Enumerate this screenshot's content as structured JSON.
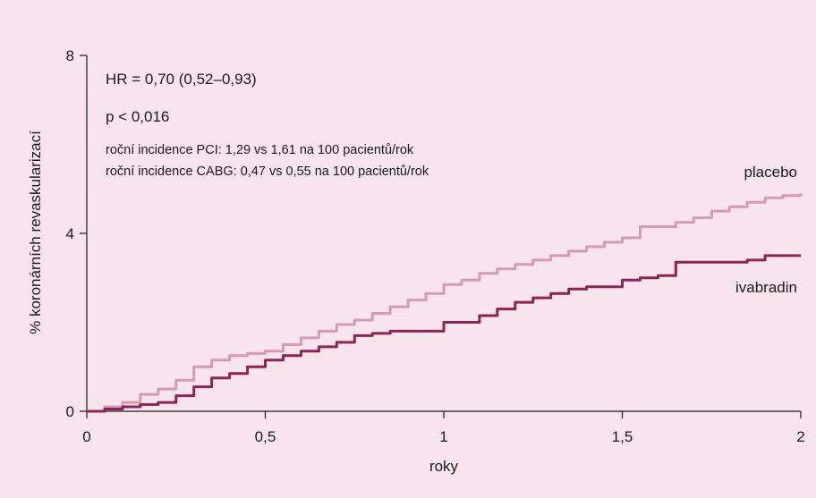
{
  "chart_data": {
    "type": "line",
    "xlabel": "roky",
    "ylabel": "% koronárních revaskularizací",
    "xlim": [
      0,
      2
    ],
    "ylim": [
      0,
      8
    ],
    "x_ticks": [
      0,
      0.5,
      1,
      1.5,
      2
    ],
    "x_tick_labels": [
      "0",
      "0,5",
      "1",
      "1,5",
      "2"
    ],
    "y_ticks": [
      0,
      4,
      8
    ],
    "y_tick_labels": [
      "0",
      "4",
      "8"
    ],
    "grid": false,
    "annotations": [
      "HR = 0,70 (0,52–0,93)",
      "p < 0,016",
      "roční incidence PCI: 1,29 vs 1,61 na 100 pacientů/rok",
      "roční incidence CABG: 0,47 vs 0,55 na 100 pacientů/rok"
    ],
    "series": [
      {
        "name": "placebo",
        "color": "#d69bb0",
        "x": [
          0,
          0.05,
          0.1,
          0.15,
          0.2,
          0.25,
          0.3,
          0.35,
          0.4,
          0.45,
          0.5,
          0.55,
          0.6,
          0.65,
          0.7,
          0.75,
          0.8,
          0.85,
          0.9,
          0.95,
          1.0,
          1.05,
          1.1,
          1.15,
          1.2,
          1.25,
          1.3,
          1.35,
          1.4,
          1.45,
          1.5,
          1.55,
          1.6,
          1.65,
          1.7,
          1.75,
          1.8,
          1.85,
          1.9,
          1.95,
          2.0
        ],
        "values": [
          0,
          0.1,
          0.2,
          0.38,
          0.5,
          0.7,
          1.0,
          1.15,
          1.25,
          1.3,
          1.35,
          1.5,
          1.65,
          1.8,
          1.95,
          2.05,
          2.2,
          2.35,
          2.5,
          2.65,
          2.85,
          2.95,
          3.1,
          3.2,
          3.3,
          3.4,
          3.5,
          3.6,
          3.7,
          3.8,
          3.9,
          4.15,
          4.15,
          4.25,
          4.35,
          4.5,
          4.6,
          4.7,
          4.8,
          4.85,
          4.9
        ]
      },
      {
        "name": "ivabradin",
        "color": "#8c2456",
        "x": [
          0,
          0.05,
          0.1,
          0.15,
          0.2,
          0.25,
          0.3,
          0.35,
          0.4,
          0.45,
          0.5,
          0.55,
          0.6,
          0.65,
          0.7,
          0.75,
          0.8,
          0.85,
          0.9,
          0.95,
          1.0,
          1.05,
          1.1,
          1.15,
          1.2,
          1.25,
          1.3,
          1.35,
          1.4,
          1.45,
          1.5,
          1.55,
          1.6,
          1.65,
          1.7,
          1.75,
          1.8,
          1.85,
          1.9,
          1.95,
          2.0
        ],
        "values": [
          0,
          0.05,
          0.1,
          0.15,
          0.2,
          0.35,
          0.55,
          0.75,
          0.85,
          1.0,
          1.15,
          1.25,
          1.35,
          1.45,
          1.55,
          1.7,
          1.75,
          1.8,
          1.8,
          1.8,
          2.0,
          2.0,
          2.15,
          2.3,
          2.45,
          2.55,
          2.65,
          2.75,
          2.8,
          2.8,
          2.95,
          3.0,
          3.05,
          3.35,
          3.35,
          3.35,
          3.35,
          3.4,
          3.5,
          3.5,
          3.5
        ]
      }
    ]
  }
}
